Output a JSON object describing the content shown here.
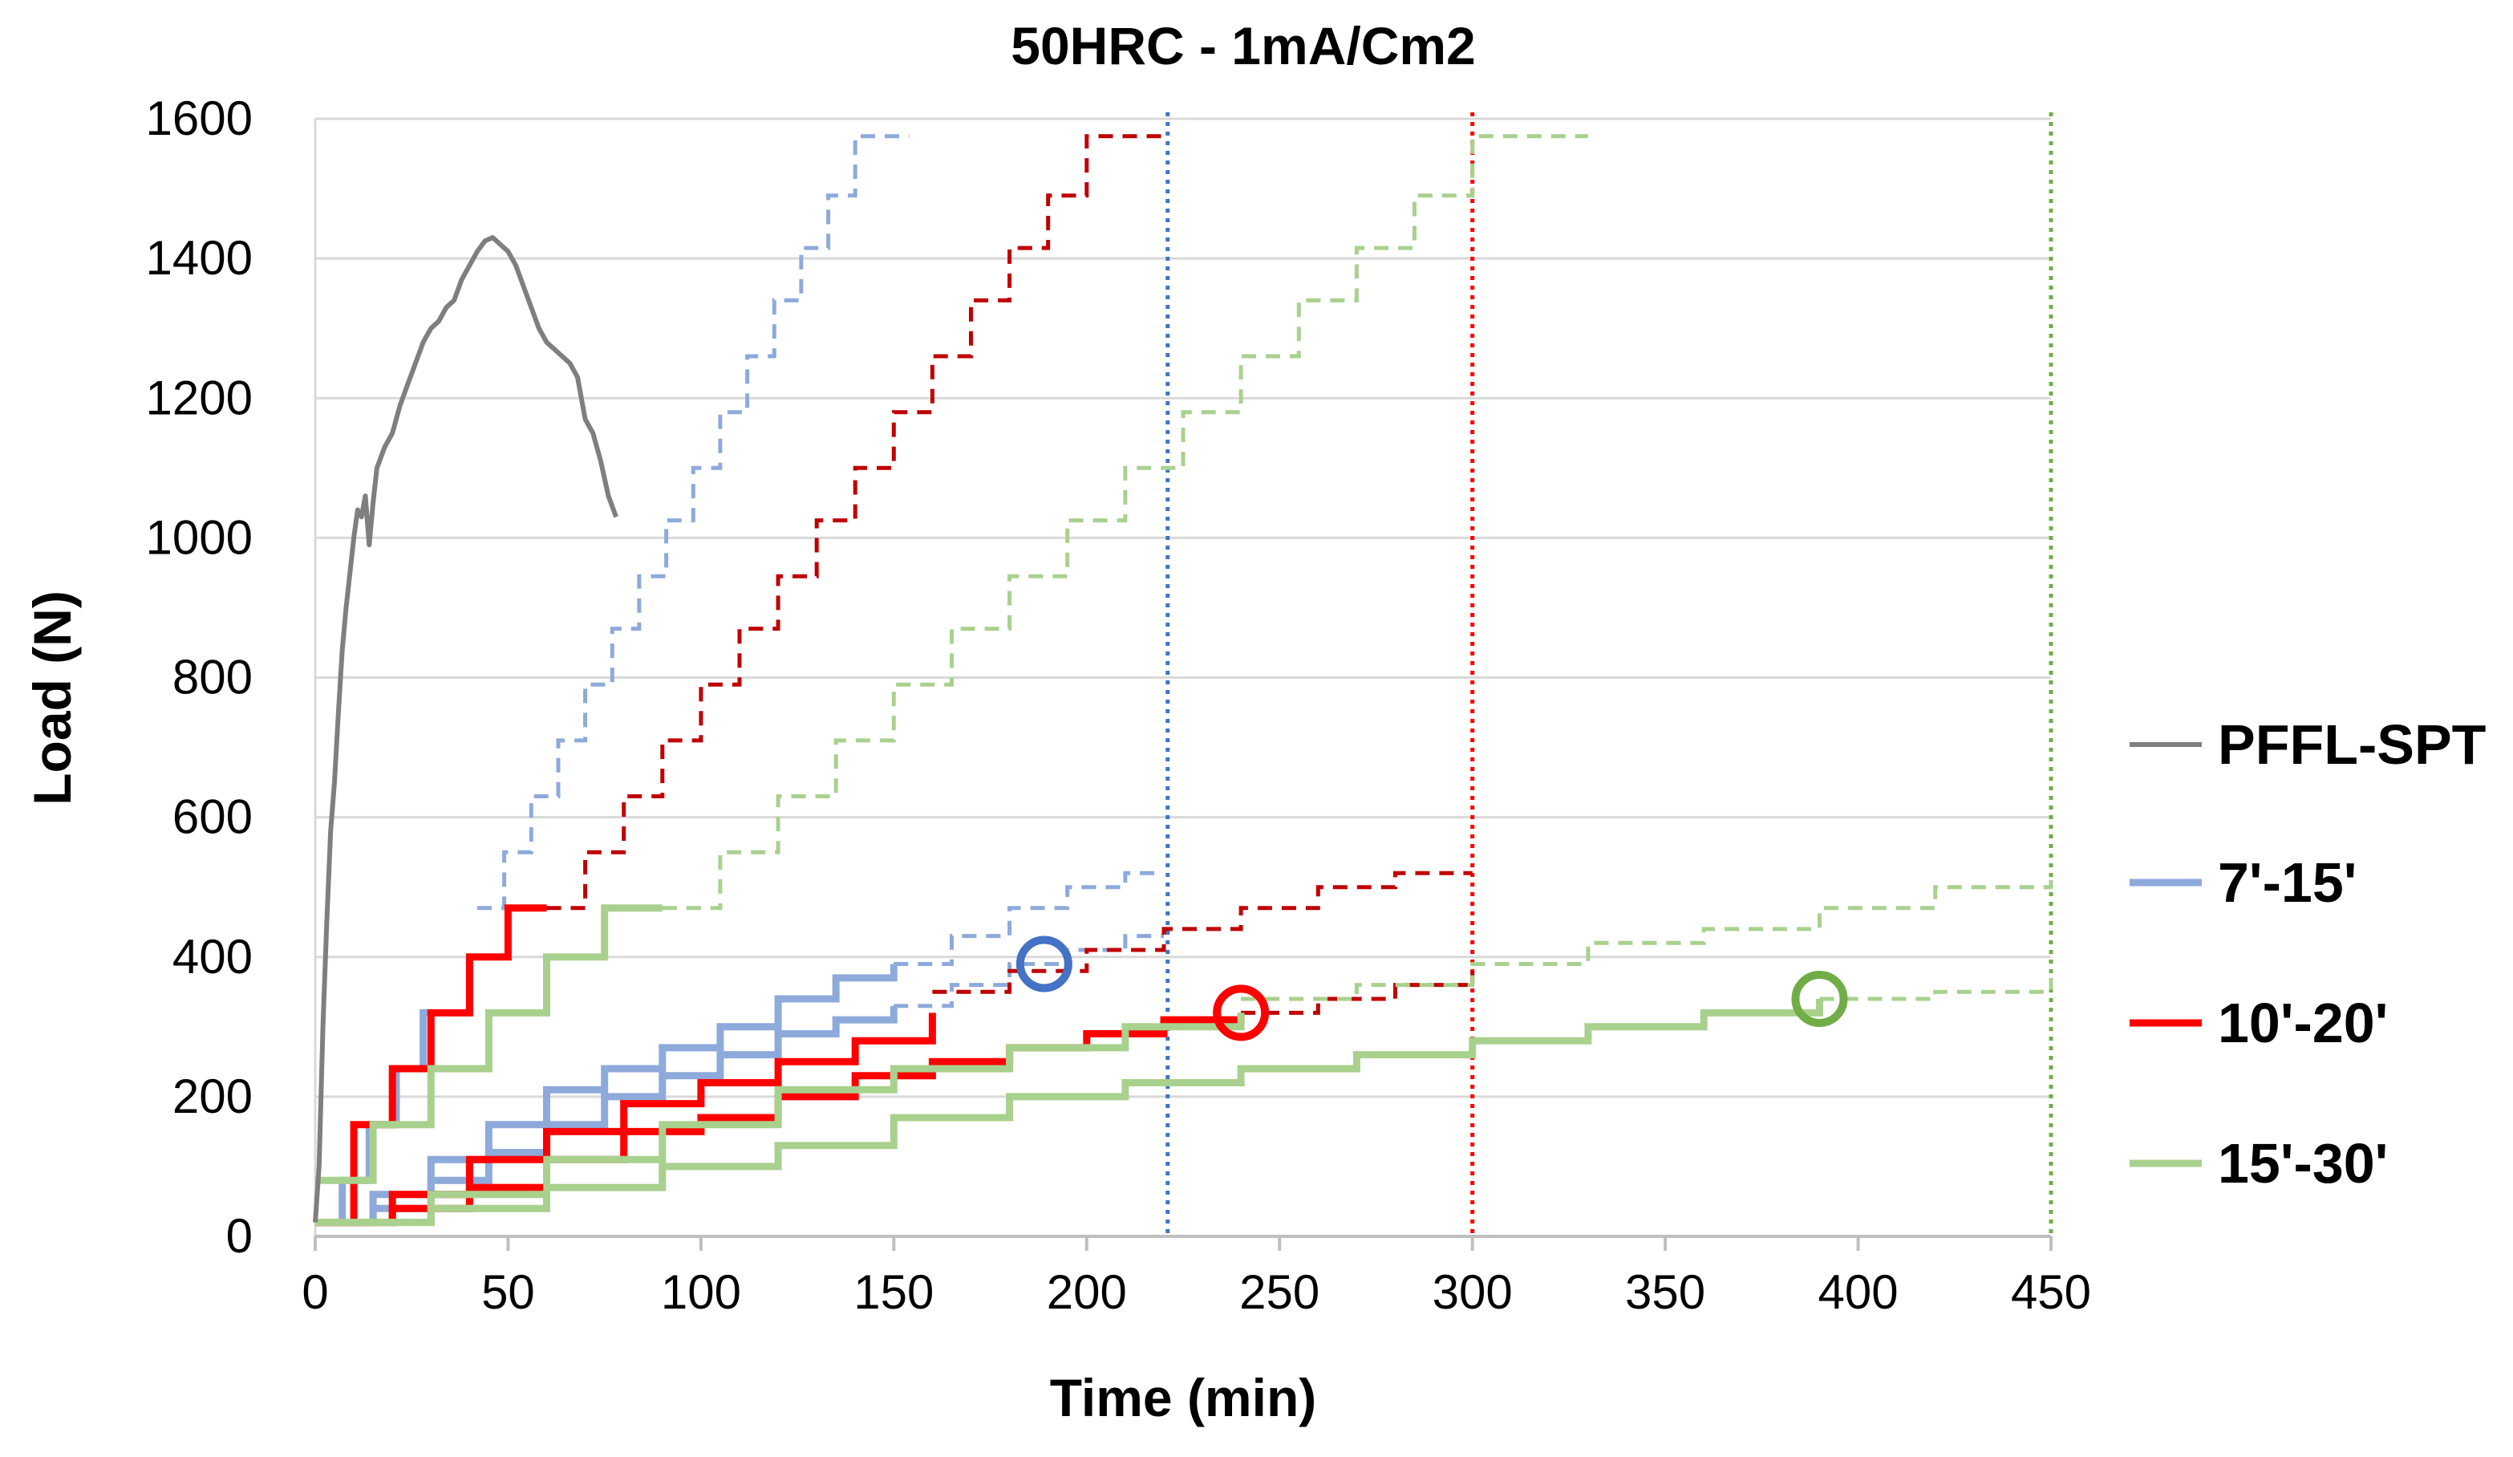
{
  "chart_data": {
    "type": "line",
    "title": "50HRC - 1mA/Cm2",
    "xlabel": "Time (min)",
    "ylabel": "Load (N)",
    "xlim": [
      0,
      450
    ],
    "ylim": [
      0,
      1600
    ],
    "xticks": [
      0,
      50,
      100,
      150,
      200,
      250,
      300,
      350,
      400,
      450
    ],
    "yticks": [
      0,
      200,
      400,
      600,
      800,
      1000,
      1200,
      1400,
      1600
    ],
    "grid": "horizontal",
    "legend_position": "right",
    "colors": {
      "pfflspt": "#7f7f7f",
      "blue": "#8eaadb",
      "blue_marker": "#4472c4",
      "red": "#ff0000",
      "darkred": "#c00000",
      "green": "#a9d18e",
      "green_marker": "#70ad47"
    },
    "series": [
      {
        "name": "PFFL-SPT",
        "color": "#7f7f7f",
        "points": [
          [
            0,
            20
          ],
          [
            1,
            100
          ],
          [
            2,
            300
          ],
          [
            3,
            450
          ],
          [
            4,
            580
          ],
          [
            5,
            650
          ],
          [
            6,
            750
          ],
          [
            7,
            840
          ],
          [
            8,
            900
          ],
          [
            9,
            950
          ],
          [
            10,
            1000
          ],
          [
            11,
            1040
          ],
          [
            12,
            1030
          ],
          [
            13,
            1060
          ],
          [
            14,
            990
          ],
          [
            15,
            1050
          ],
          [
            16,
            1100
          ],
          [
            18,
            1130
          ],
          [
            20,
            1150
          ],
          [
            22,
            1190
          ],
          [
            24,
            1220
          ],
          [
            26,
            1250
          ],
          [
            28,
            1280
          ],
          [
            30,
            1300
          ],
          [
            32,
            1310
          ],
          [
            34,
            1330
          ],
          [
            36,
            1340
          ],
          [
            38,
            1370
          ],
          [
            40,
            1390
          ],
          [
            42,
            1410
          ],
          [
            44,
            1425
          ],
          [
            46,
            1430
          ],
          [
            48,
            1420
          ],
          [
            50,
            1410
          ],
          [
            52,
            1390
          ],
          [
            54,
            1360
          ],
          [
            56,
            1330
          ],
          [
            58,
            1300
          ],
          [
            60,
            1280
          ],
          [
            62,
            1270
          ],
          [
            64,
            1260
          ],
          [
            66,
            1250
          ],
          [
            68,
            1230
          ],
          [
            70,
            1170
          ],
          [
            72,
            1150
          ],
          [
            74,
            1110
          ],
          [
            76,
            1060
          ],
          [
            78,
            1030
          ]
        ]
      },
      {
        "name": "7'-15'",
        "color": "#8eaadb"
      },
      {
        "name": "10'-20'",
        "color": "#ff0000"
      },
      {
        "name": "15'-30'",
        "color": "#a9d18e"
      }
    ],
    "step_series": [
      {
        "group": "7'-15'",
        "color": "#8eaadb",
        "style": "solid",
        "x0": 0,
        "step": 7,
        "upto": 30,
        "values": [
          20,
          80,
          160,
          240,
          320,
          400,
          470
        ]
      },
      {
        "group": "7'-15'",
        "color": "#8eaadb",
        "style": "dashed",
        "x0": 42,
        "step": 7,
        "upto": 220,
        "values": [
          470,
          550,
          630,
          710,
          790,
          870,
          945,
          1025,
          1100,
          1180,
          1260,
          1340,
          1415,
          1490,
          1575,
          1575
        ]
      },
      {
        "group": "7'-15'",
        "color": "#8eaadb",
        "style": "solid",
        "x0": 0,
        "step": 15,
        "upto": 150,
        "values": [
          20,
          60,
          110,
          160,
          210,
          240,
          270,
          300,
          340,
          370,
          390
        ]
      },
      {
        "group": "7'-15'",
        "color": "#8eaadb",
        "style": "dashed",
        "x0": 150,
        "step": 15,
        "upto": 220,
        "values": [
          390,
          430,
          470,
          500,
          520
        ]
      },
      {
        "group": "7'-15'",
        "color": "#8eaadb",
        "style": "solid",
        "x0": 0,
        "step": 15,
        "upto": 150,
        "values": [
          20,
          40,
          80,
          120,
          160,
          200,
          230,
          260,
          290,
          310,
          330
        ]
      },
      {
        "group": "7'-15'",
        "color": "#8eaadb",
        "style": "dashed",
        "x0": 150,
        "step": 15,
        "upto": 220,
        "values": [
          330,
          360,
          390,
          410,
          430
        ]
      },
      {
        "group": "10'-20'",
        "color": "#ff0000",
        "style": "solid",
        "x0": 0,
        "step": 10,
        "upto": 60,
        "values": [
          20,
          160,
          240,
          320,
          400,
          470
        ]
      },
      {
        "group": "10'-20'",
        "color": "#c00000",
        "style": "dashed",
        "x0": 60,
        "step": 10,
        "upto": 300,
        "values": [
          470,
          550,
          630,
          710,
          790,
          870,
          945,
          1025,
          1100,
          1180,
          1260,
          1340,
          1415,
          1490,
          1575,
          1575
        ]
      },
      {
        "group": "10'-20'",
        "color": "#ff0000",
        "style": "solid",
        "x0": 0,
        "step": 20,
        "upto": 160,
        "values": [
          20,
          60,
          110,
          150,
          190,
          220,
          250,
          280,
          320,
          350
        ]
      },
      {
        "group": "10'-20'",
        "color": "#c00000",
        "style": "dashed",
        "x0": 160,
        "step": 20,
        "upto": 300,
        "values": [
          350,
          380,
          410,
          440,
          470,
          500,
          520
        ]
      },
      {
        "group": "10'-20'",
        "color": "#ff0000",
        "style": "solid",
        "x0": 0,
        "step": 20,
        "upto": 240,
        "values": [
          20,
          40,
          70,
          110,
          150,
          170,
          200,
          230,
          250,
          270,
          290,
          310,
          320
        ]
      },
      {
        "group": "10'-20'",
        "color": "#c00000",
        "style": "dashed",
        "x0": 240,
        "step": 20,
        "upto": 300,
        "values": [
          320,
          340,
          360,
          380
        ]
      },
      {
        "group": "15'-30'",
        "color": "#a9d18e",
        "style": "solid",
        "x0": 0,
        "step": 15,
        "upto": 90,
        "values": [
          80,
          160,
          240,
          320,
          400,
          470
        ]
      },
      {
        "group": "15'-30'",
        "color": "#a9d18e",
        "style": "dashed",
        "x0": 90,
        "step": 15,
        "upto": 450,
        "values": [
          470,
          550,
          630,
          710,
          790,
          870,
          945,
          1025,
          1100,
          1180,
          1260,
          1340,
          1415,
          1490,
          1575,
          1575
        ]
      },
      {
        "group": "15'-30'",
        "color": "#a9d18e",
        "style": "solid",
        "x0": 0,
        "step": 30,
        "upto": 240,
        "values": [
          20,
          60,
          110,
          160,
          210,
          240,
          270,
          300,
          320,
          340
        ]
      },
      {
        "group": "15'-30'",
        "color": "#a9d18e",
        "style": "dashed",
        "x0": 240,
        "step": 30,
        "upto": 450,
        "values": [
          340,
          360,
          390,
          420,
          440,
          470,
          500,
          520
        ]
      },
      {
        "group": "15'-30'",
        "color": "#a9d18e",
        "style": "solid",
        "x0": 0,
        "step": 30,
        "upto": 390,
        "values": [
          20,
          40,
          70,
          100,
          130,
          170,
          200,
          220,
          240,
          260,
          280,
          300,
          320,
          340
        ]
      },
      {
        "group": "15'-30'",
        "color": "#a9d18e",
        "style": "dashed",
        "x0": 390,
        "step": 30,
        "upto": 450,
        "values": [
          340,
          350,
          370
        ]
      }
    ],
    "vertical_lines": [
      {
        "x": 221,
        "color": "#4472c4"
      },
      {
        "x": 300,
        "color": "#ff0000"
      },
      {
        "x": 450,
        "color": "#70ad47"
      }
    ],
    "markers": [
      {
        "x": 189,
        "y": 390,
        "color": "#4472c4"
      },
      {
        "x": 240,
        "y": 320,
        "color": "#ff0000"
      },
      {
        "x": 390,
        "y": 340,
        "color": "#70ad47"
      }
    ]
  }
}
